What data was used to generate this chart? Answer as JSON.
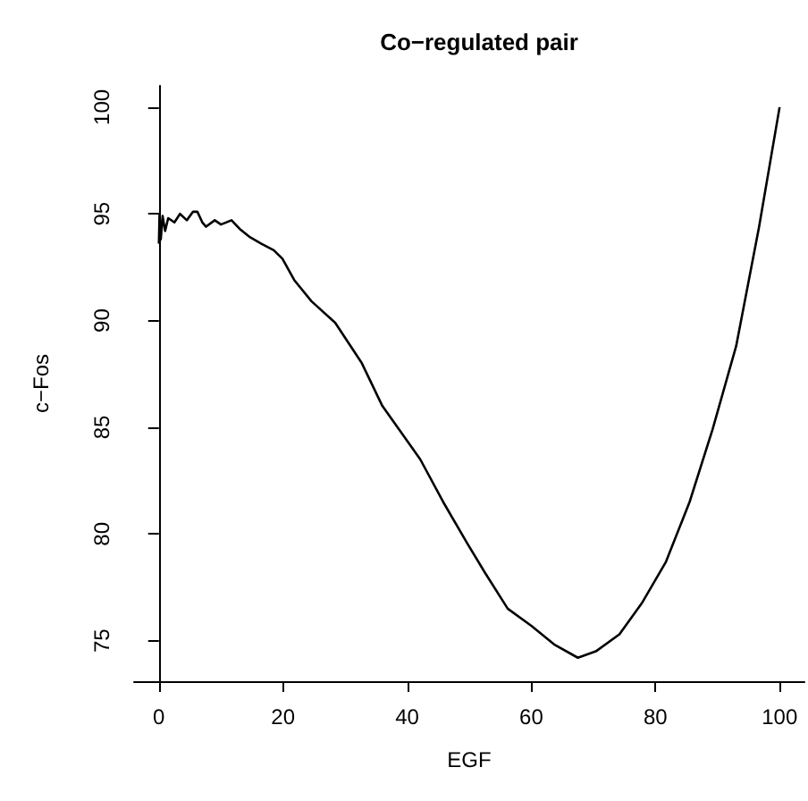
{
  "chart_data": {
    "type": "line",
    "title": "Co−regulated pair",
    "xlabel": "EGF",
    "ylabel": "c−Fos",
    "xlim": [
      -4,
      104
    ],
    "ylim": [
      73.1,
      101
    ],
    "xticks": [
      0,
      20,
      40,
      60,
      80,
      100
    ],
    "yticks": [
      75,
      80,
      85,
      90,
      95,
      100
    ],
    "grid": false,
    "marker": "none",
    "line_style": "solid",
    "series": [
      {
        "color": "#000000",
        "x": [
          0,
          0.1,
          0.3,
          0.6,
          1,
          1.5,
          2.5,
          3.4,
          4.5,
          5.5,
          6.2,
          7,
          7.6,
          9,
          10,
          11.7,
          13,
          14.7,
          16.5,
          18.5,
          19.9,
          21.8,
          24.6,
          28.4,
          32.7,
          36,
          42.1,
          45.8,
          49.6,
          52.5,
          56.2,
          60,
          63.8,
          67.5,
          70.4,
          74.2,
          77.9,
          81.7,
          85.5,
          89.2,
          93,
          96.7,
          100
        ],
        "values": [
          93.6,
          95,
          93.8,
          94.9,
          94.2,
          94.8,
          94.6,
          95,
          94.7,
          95.1,
          95.1,
          94.6,
          94.4,
          94.7,
          94.5,
          94.7,
          94.3,
          93.9,
          93.6,
          93.3,
          92.9,
          91.9,
          90.9,
          89.9,
          88,
          86,
          83.5,
          81.5,
          79.6,
          78.2,
          76.5,
          75.7,
          74.8,
          74.2,
          74.5,
          75.3,
          76.8,
          78.7,
          81.5,
          84.9,
          88.8,
          94.4,
          100
        ]
      }
    ]
  }
}
